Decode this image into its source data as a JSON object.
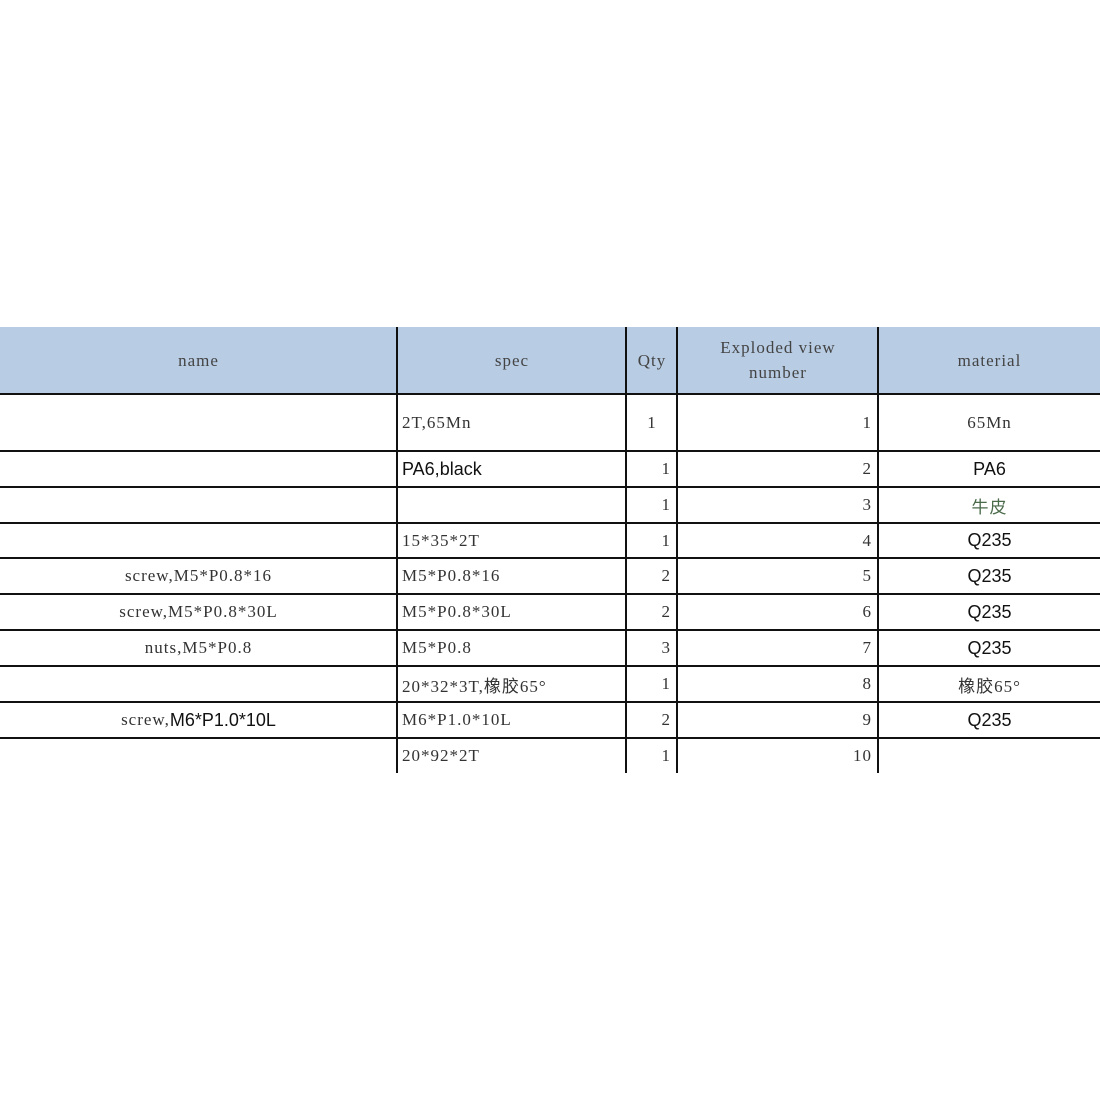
{
  "table": {
    "columns": [
      "name",
      "spec",
      "Qty",
      "Exploded view number",
      "material"
    ],
    "header_lines": {
      "exploded_1": "Exploded view",
      "exploded_2": "number"
    },
    "rows": [
      {
        "name": "",
        "spec": "2T,65Mn",
        "qty": "1",
        "number": "1",
        "material": "65Mn"
      },
      {
        "name": "",
        "spec": "PA6,black",
        "qty": "1",
        "number": "2",
        "material": "PA6"
      },
      {
        "name": "",
        "spec": "",
        "qty": "1",
        "number": "3",
        "material": "牛皮"
      },
      {
        "name": "",
        "spec": "15*35*2T",
        "qty": "1",
        "number": "4",
        "material": "Q235"
      },
      {
        "name": "screw,M5*P0.8*16",
        "spec": "M5*P0.8*16",
        "qty": "2",
        "number": "5",
        "material": "Q235"
      },
      {
        "name": "screw,M5*P0.8*30L",
        "spec": "M5*P0.8*30L",
        "qty": "2",
        "number": "6",
        "material": "Q235"
      },
      {
        "name": "nuts,M5*P0.8",
        "spec": "M5*P0.8",
        "qty": "3",
        "number": "7",
        "material": "Q235"
      },
      {
        "name": "",
        "spec": "20*32*3T,橡胶65°",
        "qty": "1",
        "number": "8",
        "material": "橡胶65°"
      },
      {
        "name": "screw,M6*P1.0*10L",
        "spec": "M6*P1.0*10L",
        "qty": "2",
        "number": "9",
        "material": "Q235"
      },
      {
        "name": "",
        "spec": "20*92*2T",
        "qty": "1",
        "number": "10",
        "material": ""
      }
    ]
  },
  "colors": {
    "header_bg": "#b8cce4",
    "grid": "#111111"
  }
}
